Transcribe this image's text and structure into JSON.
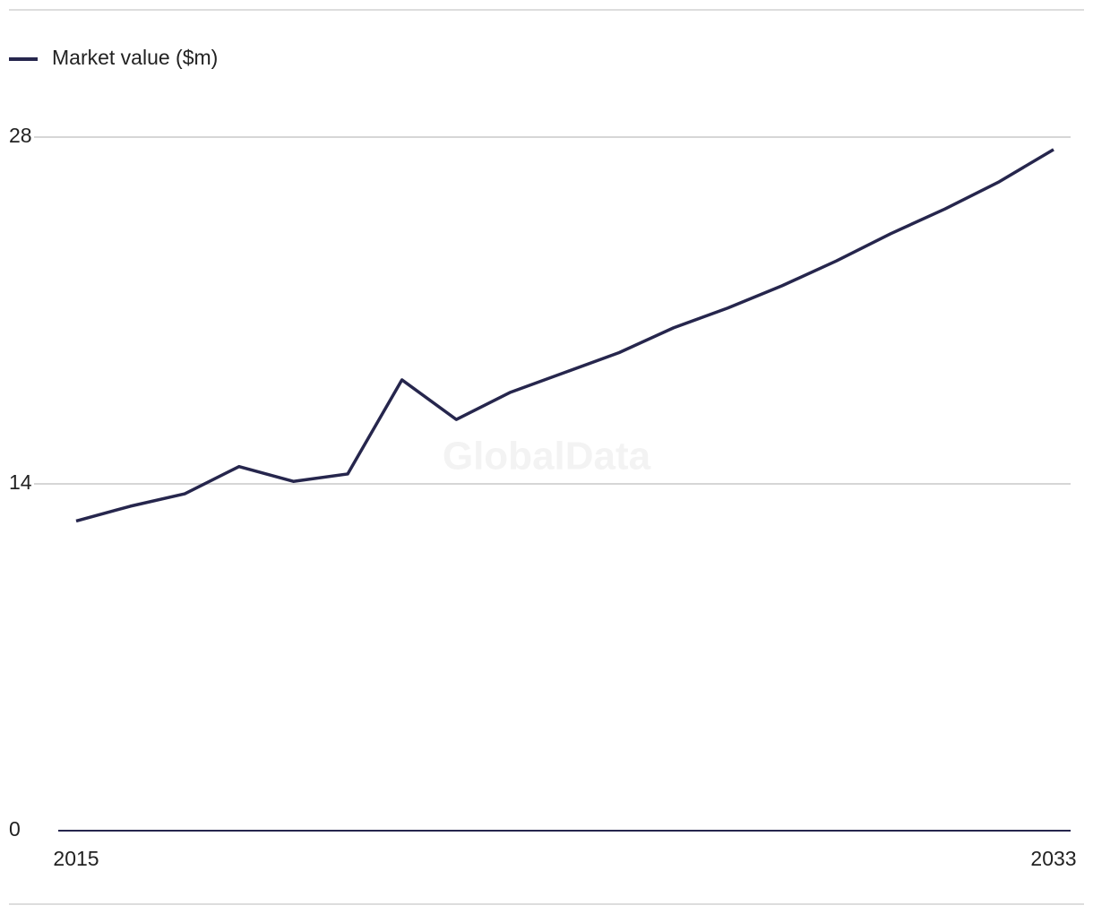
{
  "chart_data": {
    "type": "line",
    "watermark": "GlobalData",
    "x": [
      2015,
      2016,
      2017,
      2018,
      2019,
      2020,
      2021,
      2022,
      2023,
      2024,
      2025,
      2026,
      2027,
      2028,
      2029,
      2030,
      2031,
      2032,
      2033
    ],
    "xlim": [
      2015,
      2033
    ],
    "xticks": [
      2015,
      2033
    ],
    "ylim": [
      0,
      28
    ],
    "yticks": [
      0,
      14,
      28
    ],
    "grid": true,
    "legend": "top-left",
    "series": [
      {
        "name": "Market value ($m)",
        "color": "#26264d",
        "values": [
          12.5,
          13.1,
          13.6,
          14.7,
          14.1,
          14.4,
          18.2,
          16.6,
          17.7,
          18.5,
          19.3,
          20.3,
          21.1,
          22.0,
          23.0,
          24.1,
          25.1,
          26.2,
          27.5
        ]
      }
    ]
  }
}
